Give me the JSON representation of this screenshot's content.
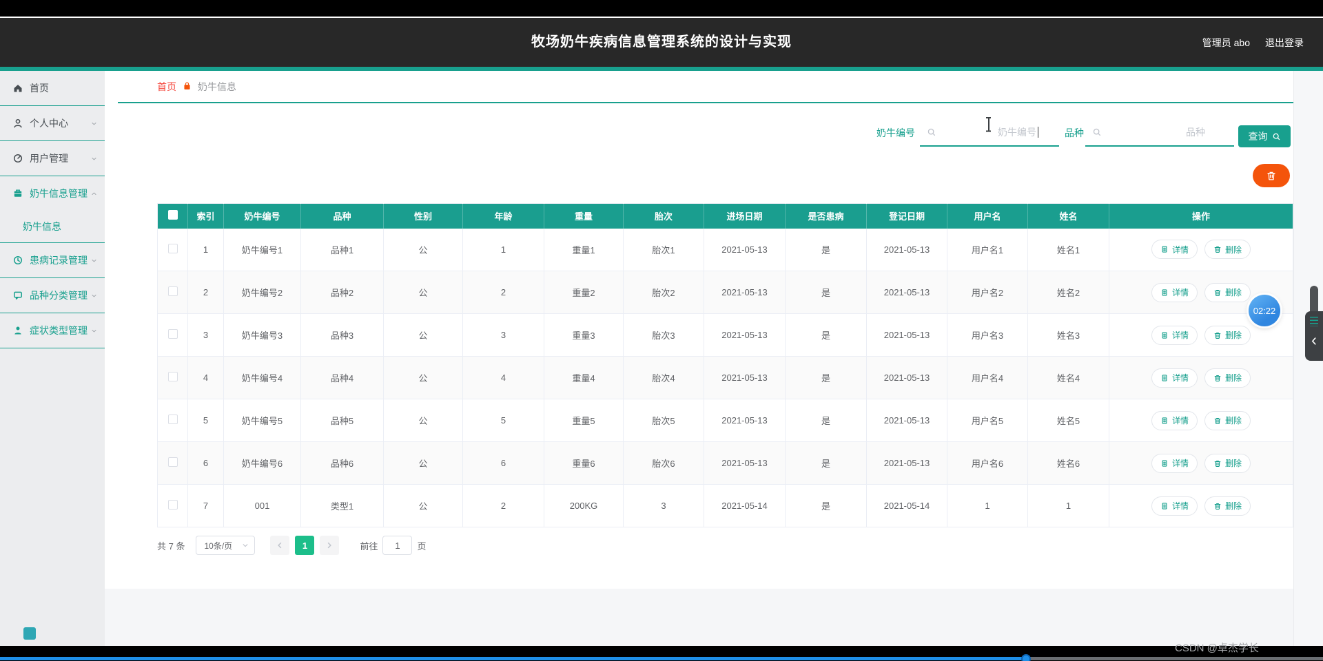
{
  "header": {
    "title": "牧场奶牛疾病信息管理系统的设计与实现",
    "user": "管理员 abo",
    "logout": "退出登录"
  },
  "breadcrumb": {
    "home": "首页",
    "current": "奶牛信息"
  },
  "sidebar": {
    "items": [
      {
        "key": "home",
        "label": "首页",
        "icon": "home-icon",
        "tone": "dark"
      },
      {
        "key": "profile",
        "label": "个人中心",
        "icon": "user-icon",
        "tone": "dark",
        "chevron": "down"
      },
      {
        "key": "user-management",
        "label": "用户管理",
        "icon": "pie-chart-icon",
        "tone": "dark",
        "chevron": "down"
      },
      {
        "key": "cow-info-management",
        "label": "奶牛信息管理",
        "icon": "briefcase-icon",
        "tone": "accent",
        "chevron": "up",
        "children": [
          {
            "key": "cow-info",
            "label": "奶牛信息",
            "active": true
          }
        ]
      },
      {
        "key": "disease-record-management",
        "label": "患病记录管理",
        "icon": "clock-icon",
        "tone": "accent",
        "chevron": "down"
      },
      {
        "key": "breed-category-management",
        "label": "品种分类管理",
        "icon": "chat-icon",
        "tone": "accent",
        "chevron": "down"
      },
      {
        "key": "symptom-type-management",
        "label": "症状类型管理",
        "icon": "person-icon",
        "tone": "accent",
        "chevron": "down"
      }
    ]
  },
  "search": {
    "fields": [
      {
        "label": "奶牛编号",
        "placeholder": "奶牛编号"
      },
      {
        "label": "品种",
        "placeholder": "品种"
      }
    ],
    "query_label": "查询"
  },
  "table": {
    "columns": [
      "索引",
      "奶牛编号",
      "品种",
      "性别",
      "年龄",
      "重量",
      "胎次",
      "进场日期",
      "是否患病",
      "登记日期",
      "用户名",
      "姓名",
      "操作"
    ],
    "rows": [
      [
        "1",
        "奶牛编号1",
        "品种1",
        "公",
        "1",
        "重量1",
        "胎次1",
        "2021-05-13",
        "是",
        "2021-05-13",
        "用户名1",
        "姓名1"
      ],
      [
        "2",
        "奶牛编号2",
        "品种2",
        "公",
        "2",
        "重量2",
        "胎次2",
        "2021-05-13",
        "是",
        "2021-05-13",
        "用户名2",
        "姓名2"
      ],
      [
        "3",
        "奶牛编号3",
        "品种3",
        "公",
        "3",
        "重量3",
        "胎次3",
        "2021-05-13",
        "是",
        "2021-05-13",
        "用户名3",
        "姓名3"
      ],
      [
        "4",
        "奶牛编号4",
        "品种4",
        "公",
        "4",
        "重量4",
        "胎次4",
        "2021-05-13",
        "是",
        "2021-05-13",
        "用户名4",
        "姓名4"
      ],
      [
        "5",
        "奶牛编号5",
        "品种5",
        "公",
        "5",
        "重量5",
        "胎次5",
        "2021-05-13",
        "是",
        "2021-05-13",
        "用户名5",
        "姓名5"
      ],
      [
        "6",
        "奶牛编号6",
        "品种6",
        "公",
        "6",
        "重量6",
        "胎次6",
        "2021-05-13",
        "是",
        "2021-05-13",
        "用户名6",
        "姓名6"
      ],
      [
        "7",
        "001",
        "类型1",
        "公",
        "2",
        "200KG",
        "3",
        "2021-05-14",
        "是",
        "2021-05-14",
        "1",
        "1"
      ]
    ],
    "actions": {
      "detail": "详情",
      "delete": "删除"
    }
  },
  "pagination": {
    "total": "共 7 条",
    "page_size": "10条/页",
    "current_page": "1",
    "goto_prefix": "前往",
    "goto_value": "1",
    "goto_suffix": "页"
  },
  "misc": {
    "timer": "02:22",
    "watermark": "CSDN @卓杰学长"
  },
  "colors": {
    "accent": "#18A08E",
    "table_header": "#1A9E8F",
    "danger_orange": "#F4540B",
    "breadcrumb_red": "#F5483E",
    "pager_active": "#1CBE8A",
    "progress_blue": "#1E8FE8",
    "header_bg": "#282828"
  }
}
